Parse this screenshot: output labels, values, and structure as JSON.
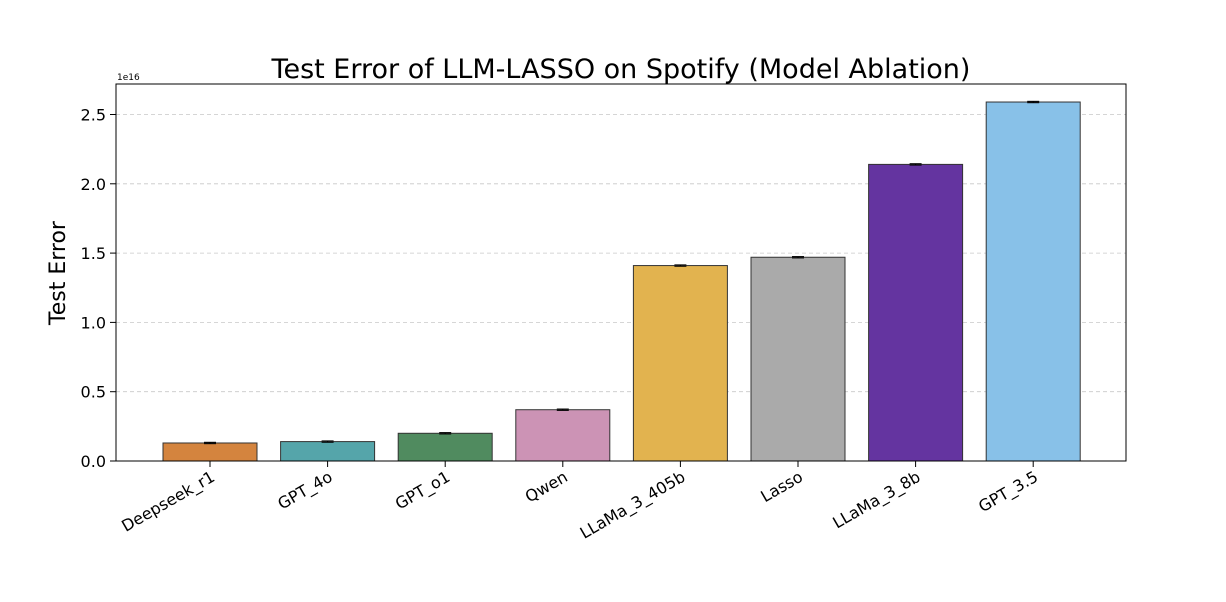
{
  "chart_data": {
    "type": "bar",
    "title": "Test Error of LLM-LASSO on Spotify (Model Ablation)",
    "xlabel": "",
    "ylabel": "Test Error",
    "scale_label": "1e16",
    "ylim": [
      0,
      2.72
    ],
    "yticks": [
      0.0,
      0.5,
      1.0,
      1.5,
      2.0,
      2.5
    ],
    "ytick_labels": [
      "0.0",
      "0.5",
      "1.0",
      "1.5",
      "2.0",
      "2.5"
    ],
    "grid": "horizontal-dashed",
    "categories": [
      "Deepseek_r1",
      "GPT_4o",
      "GPT_o1",
      "Qwen",
      "LLaMa_3_405b",
      "Lasso",
      "LLaMa_3_8b",
      "GPT_3.5"
    ],
    "values": [
      0.13,
      0.14,
      0.2,
      0.37,
      1.41,
      1.47,
      2.14,
      2.59
    ],
    "errors": [
      0.005,
      0.005,
      0.005,
      0.005,
      0.005,
      0.005,
      0.005,
      0.005
    ],
    "colors": [
      "#d4843e",
      "#55a5aa",
      "#508b5f",
      "#cc93b5",
      "#e2b34f",
      "#aaaaaa",
      "#6434a0",
      "#88c1e8"
    ]
  }
}
